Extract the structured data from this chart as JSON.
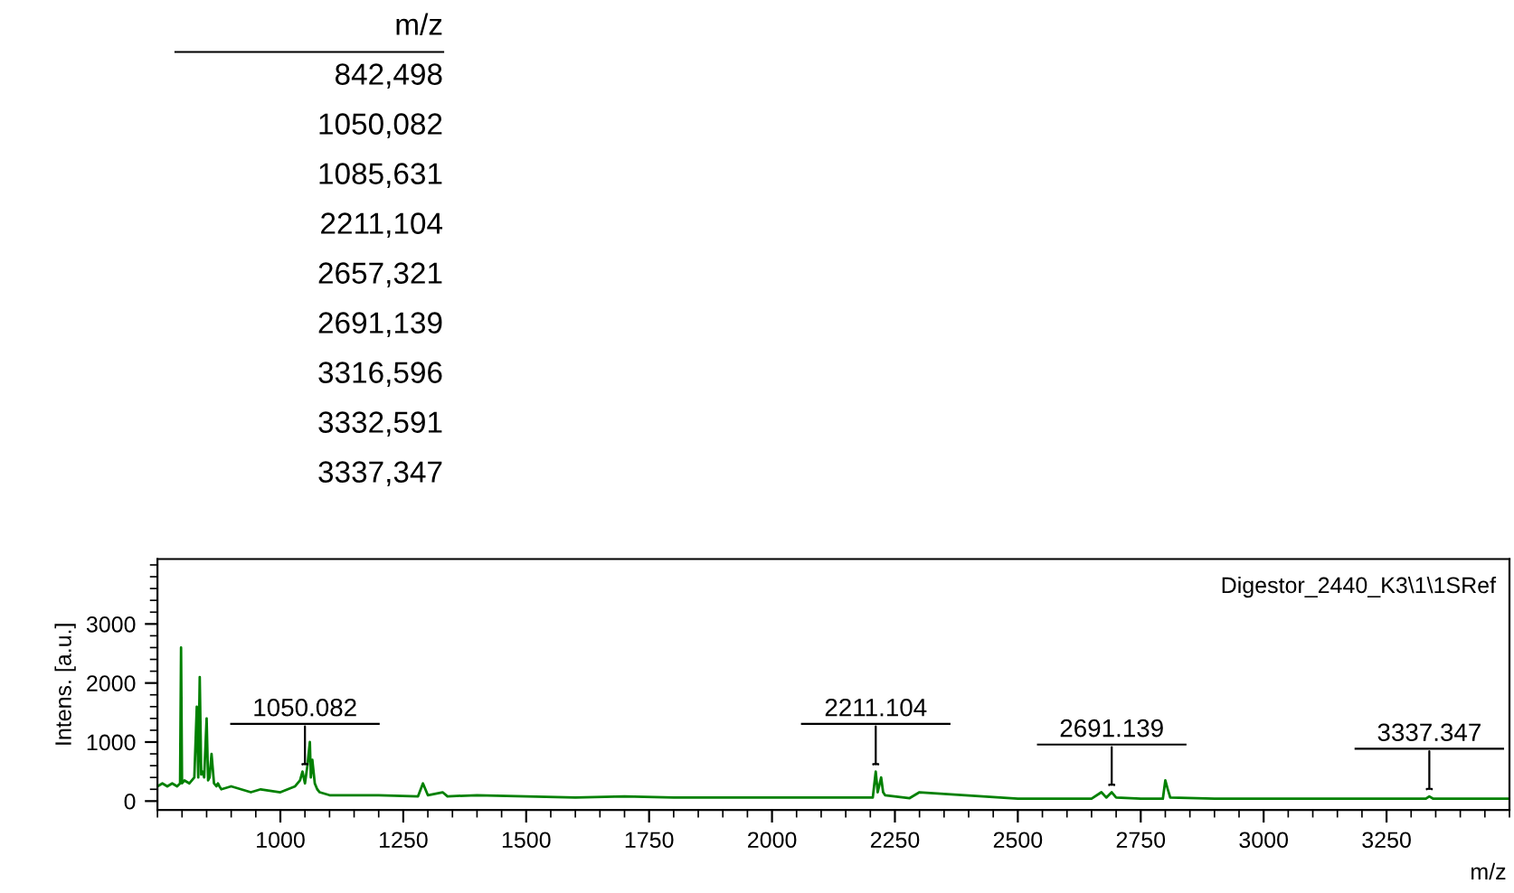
{
  "chart_data": {
    "type": "line",
    "title": "Digestor_2440_K3\\1\\1SRef",
    "xlabel": "m/z",
    "ylabel": "Intens. [a.u.]",
    "annotations": [
      "m/z",
      "842,498",
      "1050,082",
      "1085,631",
      "2211,104",
      "2657,321",
      "2691,139",
      "3316,596",
      "3332,591",
      "3337,347",
      {
        "text": "1050.082",
        "x": 1050,
        "y": 500
      },
      {
        "text": "2211.104",
        "x": 2211,
        "y": 500
      },
      {
        "text": "2691.139",
        "x": 2691,
        "y": 150
      },
      {
        "text": "3337.347",
        "x": 3337,
        "y": 80
      }
    ],
    "series": [
      {
        "color": "#008000",
        "x": [
          750,
          760,
          770,
          780,
          790,
          796,
          798,
          800,
          805,
          815,
          825,
          830,
          833,
          836,
          839,
          842,
          845,
          850,
          853,
          856,
          860,
          865,
          870,
          873,
          876,
          880,
          900,
          920,
          940,
          960,
          1000,
          1030,
          1040,
          1045,
          1050,
          1055,
          1060,
          1062,
          1065,
          1070,
          1075,
          1080,
          1100,
          1200,
          1280,
          1290,
          1295,
          1300,
          1330,
          1340,
          1400,
          1500,
          1600,
          1700,
          1800,
          1900,
          2000,
          2100,
          2200,
          2205,
          2211,
          2215,
          2222,
          2226,
          2230,
          2280,
          2300,
          2500,
          2650,
          2670,
          2680,
          2691,
          2700,
          2750,
          2795,
          2800,
          2805,
          2810,
          2900,
          3000,
          3200,
          3330,
          3337,
          3345,
          3400,
          3500
        ],
        "values": [
          250,
          300,
          250,
          300,
          250,
          300,
          2600,
          300,
          350,
          300,
          400,
          1600,
          400,
          2100,
          450,
          500,
          400,
          1400,
          350,
          400,
          800,
          300,
          250,
          300,
          250,
          200,
          250,
          200,
          150,
          200,
          150,
          250,
          350,
          500,
          300,
          600,
          1000,
          400,
          700,
          300,
          200,
          150,
          100,
          100,
          80,
          300,
          200,
          100,
          150,
          80,
          100,
          80,
          60,
          80,
          60,
          60,
          60,
          60,
          60,
          60,
          500,
          150,
          400,
          150,
          100,
          50,
          150,
          40,
          40,
          150,
          60,
          150,
          60,
          40,
          40,
          350,
          200,
          60,
          40,
          40,
          40,
          40,
          80,
          40,
          40,
          40
        ]
      }
    ],
    "xlim": [
      750,
      3500
    ],
    "ylim": [
      -150,
      4100
    ],
    "xticks": [
      1000,
      1250,
      1500,
      1750,
      2000,
      2250,
      2500,
      2750,
      3000,
      3250
    ],
    "yticks": [
      0,
      1000,
      2000,
      3000
    ],
    "grid": false,
    "legend": false
  }
}
